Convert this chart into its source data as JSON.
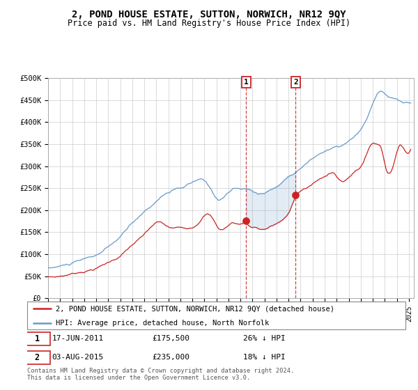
{
  "title": "2, POND HOUSE ESTATE, SUTTON, NORWICH, NR12 9QY",
  "subtitle": "Price paid vs. HM Land Registry's House Price Index (HPI)",
  "ylabel_ticks": [
    "£0",
    "£50K",
    "£100K",
    "£150K",
    "£200K",
    "£250K",
    "£300K",
    "£350K",
    "£400K",
    "£450K",
    "£500K"
  ],
  "ytick_vals": [
    0,
    50000,
    100000,
    150000,
    200000,
    250000,
    300000,
    350000,
    400000,
    450000,
    500000
  ],
  "ylim": [
    0,
    500000
  ],
  "hpi_color": "#6699cc",
  "property_color": "#cc2222",
  "transaction1_price": 175500,
  "transaction2_price": 235000,
  "legend_property": "2, POND HOUSE ESTATE, SUTTON, NORWICH, NR12 9QY (detached house)",
  "legend_hpi": "HPI: Average price, detached house, North Norfolk",
  "footnote": "Contains HM Land Registry data © Crown copyright and database right 2024.\nThis data is licensed under the Open Government Licence v3.0.",
  "background_color": "#ffffff",
  "grid_color": "#cccccc"
}
